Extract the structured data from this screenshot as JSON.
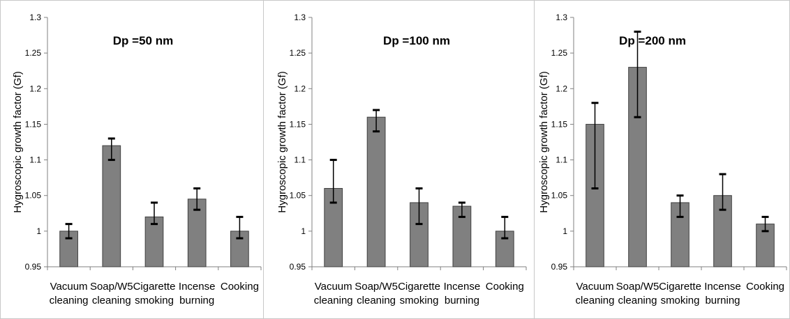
{
  "colors": {
    "bar_fill": "#808080",
    "bar_stroke": "#404040"
  },
  "chart_data": [
    {
      "type": "bar",
      "title": "Dp =50 nm",
      "ylabel": "Hygroscopic growth factor (Gf)",
      "xlabel": "",
      "ylim": [
        0.95,
        1.3
      ],
      "yticks": [
        "0.95",
        "1",
        "1.05",
        "1.1",
        "1.15",
        "1.2",
        "1.25",
        "1.3"
      ],
      "categories": [
        [
          "Vacuum",
          "cleaning"
        ],
        [
          "Soap/W5",
          "cleaning"
        ],
        [
          "Cigarette",
          "smoking"
        ],
        [
          "Incense",
          "burning"
        ],
        [
          "Cooking"
        ]
      ],
      "values": [
        1.0,
        1.12,
        1.02,
        1.045,
        1.0
      ],
      "err_low": [
        0.99,
        1.1,
        1.01,
        1.03,
        0.99
      ],
      "err_high": [
        1.01,
        1.13,
        1.04,
        1.06,
        1.02
      ],
      "grid": false
    },
    {
      "type": "bar",
      "title": "Dp =100 nm",
      "ylabel": "Hygroscopic growth factor (Gf)",
      "xlabel": "",
      "ylim": [
        0.95,
        1.3
      ],
      "yticks": [
        "0.95",
        "1",
        "1.05",
        "1.1",
        "1.15",
        "1.2",
        "1.25",
        "1.3"
      ],
      "categories": [
        [
          "Vacuum",
          "cleaning"
        ],
        [
          "Soap/W5",
          "cleaning"
        ],
        [
          "Cigarette",
          "smoking"
        ],
        [
          "Incense",
          "burning"
        ],
        [
          "Cooking"
        ]
      ],
      "values": [
        1.06,
        1.16,
        1.04,
        1.035,
        1.0
      ],
      "err_low": [
        1.04,
        1.14,
        1.01,
        1.02,
        0.99
      ],
      "err_high": [
        1.1,
        1.17,
        1.06,
        1.04,
        1.02
      ],
      "grid": false
    },
    {
      "type": "bar",
      "title": "Dp =200 nm",
      "ylabel": "Hygroscopic growth factor (Gf)",
      "xlabel": "",
      "ylim": [
        0.95,
        1.3
      ],
      "yticks": [
        "0.95",
        "1",
        "1.05",
        "1.1",
        "1.15",
        "1.2",
        "1.25",
        "1.3"
      ],
      "categories": [
        [
          "Vacuum",
          "cleaning"
        ],
        [
          "Soap/W5",
          "cleaning"
        ],
        [
          "Cigarette",
          "smoking"
        ],
        [
          "Incense",
          "burning"
        ],
        [
          "Cooking"
        ]
      ],
      "values": [
        1.15,
        1.23,
        1.04,
        1.05,
        1.01
      ],
      "err_low": [
        1.06,
        1.16,
        1.02,
        1.03,
        1.0
      ],
      "err_high": [
        1.18,
        1.28,
        1.05,
        1.08,
        1.02
      ],
      "grid": false
    }
  ]
}
